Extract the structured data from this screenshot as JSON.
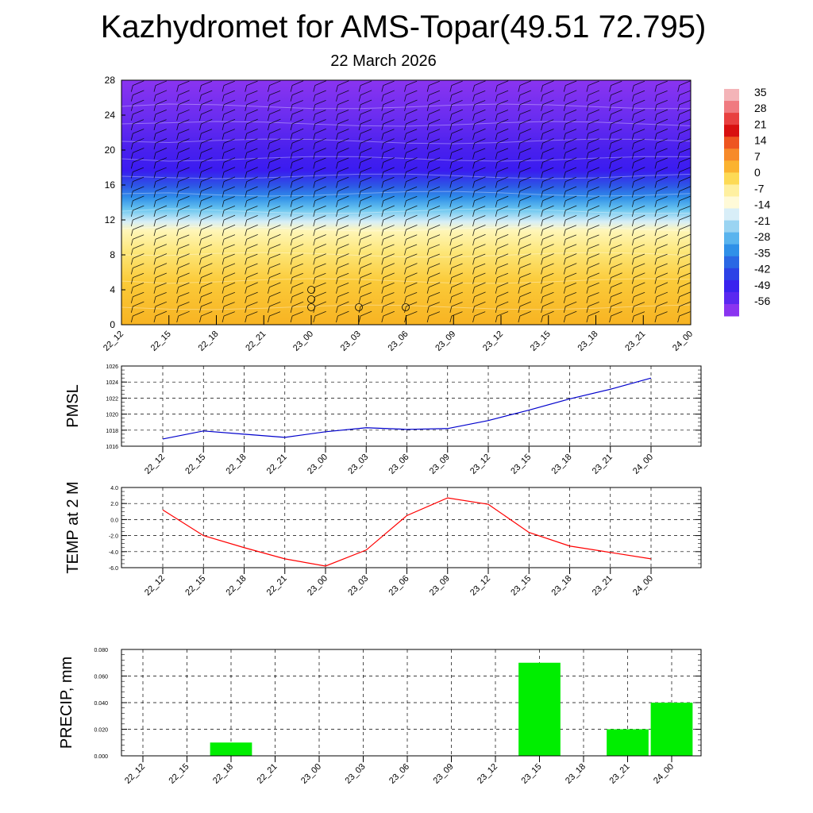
{
  "title": "Kazhydromet for AMS-Topar(49.51 72.795)",
  "subtitle": "22 March 2026",
  "time_ticks": [
    "22_12",
    "22_15",
    "22_18",
    "22_21",
    "23_00",
    "23_03",
    "23_06",
    "23_09",
    "23_12",
    "23_15",
    "23_18",
    "23_21",
    "24_00"
  ],
  "colors": {
    "pmsl_line": "#0000cc",
    "temp_line": "#ff0000",
    "precip_bar": "#00ee00"
  },
  "chart_data": [
    {
      "type": "heatmap",
      "name": "cross-section",
      "y_ticks": [
        "0",
        "4",
        "8",
        "12",
        "16",
        "20",
        "24",
        "28"
      ],
      "ylim": [
        0,
        28
      ],
      "colorbar_labels": [
        "35",
        "28",
        "21",
        "14",
        "7",
        "0",
        "-7",
        "-14",
        "-21",
        "-28",
        "-35",
        "-42",
        "-49",
        "-56"
      ],
      "description_levels": [
        {
          "z": 0,
          "value": -4
        },
        {
          "z": 6,
          "value": -6
        },
        {
          "z": 10,
          "value": -11
        },
        {
          "z": 12,
          "value": -20
        },
        {
          "z": 14,
          "value": -32
        },
        {
          "z": 16,
          "value": -46
        },
        {
          "z": 18,
          "value": -56
        },
        {
          "z": 20,
          "value": -60
        },
        {
          "z": 24,
          "value": -58
        },
        {
          "z": 28,
          "value": -55
        }
      ]
    },
    {
      "type": "line",
      "name": "PMSL",
      "ylabel": "PMSL",
      "ylim": [
        1016,
        1026
      ],
      "y_ticks": [
        "1016",
        "1018",
        "1020",
        "1022",
        "1024",
        "1026"
      ],
      "categories": [
        "22_12",
        "22_15",
        "22_18",
        "22_21",
        "23_00",
        "23_03",
        "23_06",
        "23_09",
        "23_12",
        "23_15",
        "23_18",
        "23_21",
        "24_00"
      ],
      "values": [
        1016.9,
        1017.9,
        1017.5,
        1017.1,
        1017.8,
        1018.3,
        1018.1,
        1018.2,
        1019.2,
        1020.5,
        1021.9,
        1023.1,
        1024.5
      ]
    },
    {
      "type": "line",
      "name": "TEMP",
      "ylabel": "TEMP at 2 M",
      "ylim": [
        -6,
        4
      ],
      "y_ticks": [
        "-6.0",
        "-4.0",
        "-2.0",
        "0.0",
        "2.0",
        "4.0"
      ],
      "categories": [
        "22_12",
        "22_15",
        "22_18",
        "22_21",
        "23_00",
        "23_03",
        "23_06",
        "23_09",
        "23_12",
        "23_15",
        "23_18",
        "23_21",
        "24_00"
      ],
      "values": [
        1.2,
        -2.0,
        -3.5,
        -4.9,
        -5.8,
        -3.8,
        0.5,
        2.7,
        1.9,
        -1.6,
        -3.3,
        -4.1,
        -4.9
      ]
    },
    {
      "type": "bar",
      "name": "PRECIP",
      "ylabel": "PRECIP, mm",
      "ylim": [
        0,
        0.08
      ],
      "y_ticks": [
        "0.000",
        "0.020",
        "0.040",
        "0.060",
        "0.080"
      ],
      "categories": [
        "22_12",
        "22_15",
        "22_18",
        "22_21",
        "23_00",
        "23_03",
        "23_06",
        "23_09",
        "23_12",
        "23_15",
        "23_18",
        "23_21",
        "24_00"
      ],
      "values": [
        0,
        0,
        0.01,
        0,
        0,
        0,
        0,
        0,
        0,
        0.07,
        0,
        0.02,
        0.04
      ]
    }
  ]
}
